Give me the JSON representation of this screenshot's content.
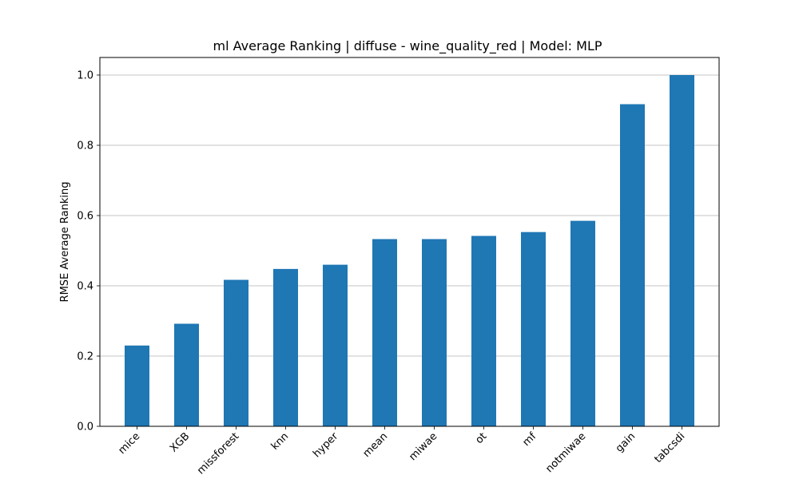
{
  "chart_data": {
    "type": "bar",
    "title": "ml Average Ranking | diffuse - wine_quality_red | Model: MLP",
    "xlabel": "",
    "ylabel": "RMSE Average Ranking",
    "categories": [
      "mice",
      "XGB",
      "missforest",
      "knn",
      "hyper",
      "mean",
      "miwae",
      "ot",
      "mf",
      "notmiwae",
      "gain",
      "tabcsdi"
    ],
    "values": [
      0.23,
      0.292,
      0.417,
      0.448,
      0.46,
      0.533,
      0.533,
      0.542,
      0.553,
      0.585,
      0.917,
      1.0
    ],
    "ylim": [
      0,
      1.05
    ],
    "yticks": [
      0.0,
      0.2,
      0.4,
      0.6,
      0.8,
      1.0
    ],
    "ytick_labels": [
      "0.0",
      "0.2",
      "0.4",
      "0.6",
      "0.8",
      "1.0"
    ],
    "grid": {
      "y": true,
      "x": false
    },
    "bar_color": "#1f77b4",
    "grid_color": "#b0b0b0",
    "legend": "none"
  }
}
